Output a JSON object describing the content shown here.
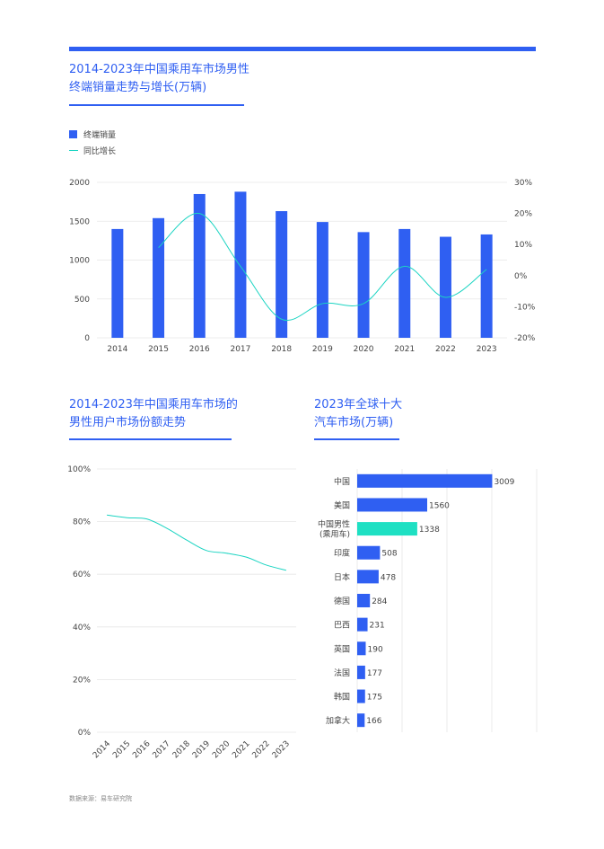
{
  "colors": {
    "accent": "#2f5ff2",
    "line": "#1ad4c2",
    "highlight": "#1ee0c3",
    "grid": "#e6e6e6"
  },
  "chart1": {
    "title_line1": "2014-2023年中国乘用车市场男性",
    "title_line2": "终端销量走势与增长(万辆)",
    "legend_bar": "终端销量",
    "legend_line": "同比增长"
  },
  "chart2": {
    "title_line1": "2014-2023年中国乘用车市场的",
    "title_line2": "男性用户市场份额走势"
  },
  "chart3": {
    "title_line1": "2023年全球十大",
    "title_line2": "汽车市场(万辆)"
  },
  "source": "数据来源：易车研究院",
  "chart_data": [
    {
      "type": "bar",
      "categories": [
        "2014",
        "2015",
        "2016",
        "2017",
        "2018",
        "2019",
        "2020",
        "2021",
        "2022",
        "2023"
      ],
      "series": [
        {
          "name": "终端销量",
          "type": "bar",
          "axis": "left",
          "values": [
            1400,
            1540,
            1850,
            1880,
            1630,
            1490,
            1360,
            1400,
            1300,
            1330
          ]
        },
        {
          "name": "同比增长",
          "type": "line",
          "axis": "right",
          "values": [
            null,
            9,
            20,
            3,
            -14,
            -9,
            -9,
            3,
            -7,
            2
          ]
        }
      ],
      "y_left": {
        "ylim": [
          0,
          2000
        ],
        "ticks": [
          "0",
          "500",
          "1000",
          "1500",
          "2000"
        ]
      },
      "y_right": {
        "ylim": [
          -20,
          30
        ],
        "ticks": [
          "-20%",
          "-10%",
          "0%",
          "10%",
          "20%",
          "30%"
        ]
      },
      "grid": true,
      "legend_position": "top-left"
    },
    {
      "type": "line",
      "categories": [
        "2014",
        "2015",
        "2016",
        "2017",
        "2018",
        "2019",
        "2020",
        "2021",
        "2022",
        "2023"
      ],
      "series": [
        {
          "values": [
            82.5,
            81.5,
            81,
            77.5,
            73,
            69,
            68,
            66.5,
            63.5,
            61.5
          ]
        }
      ],
      "ylim": [
        0,
        100
      ],
      "yticks": [
        "0%",
        "20%",
        "40%",
        "60%",
        "80%",
        "100%"
      ],
      "grid": true
    },
    {
      "type": "bar",
      "orientation": "horizontal",
      "categories": [
        "中国",
        "美国",
        "中国男性\n(乘用车)",
        "印度",
        "日本",
        "德国",
        "巴西",
        "英国",
        "法国",
        "韩国",
        "加拿大"
      ],
      "values": [
        3009,
        1560,
        1338,
        508,
        478,
        284,
        231,
        190,
        177,
        175,
        166
      ],
      "highlight_index": 2,
      "xlim": [
        0,
        4000
      ],
      "grid": true
    }
  ]
}
